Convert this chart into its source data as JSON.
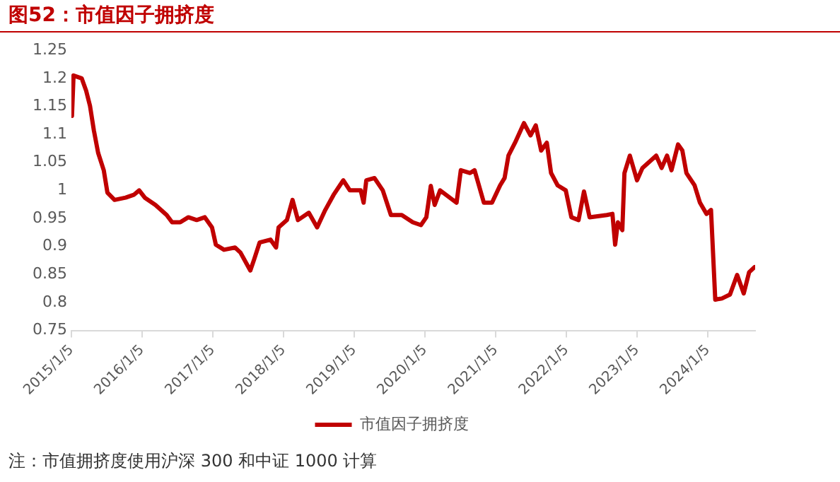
{
  "chart_data": {
    "type": "line",
    "title": "图52：市值因子拥挤度",
    "annotations": [
      "注：市值拥挤度使用沪深 300 和中证 1000 计算"
    ],
    "x": [
      "2015-01-08",
      "2015-01-16",
      "2015-02-27",
      "2015-03-22",
      "2015-04-11",
      "2015-05-01",
      "2015-05-23",
      "2015-06-21",
      "2015-07-10",
      "2015-08-16",
      "2015-10-12",
      "2015-11-23",
      "2015-12-21",
      "2016-01-19",
      "2016-03-14",
      "2016-05-11",
      "2016-06-08",
      "2016-07-20",
      "2016-08-31",
      "2016-10-13",
      "2016-11-24",
      "2016-12-31",
      "2017-01-20",
      "2017-03-03",
      "2017-04-29",
      "2017-05-27",
      "2017-07-17",
      "2017-08-05",
      "2017-09-03",
      "2017-10-29",
      "2017-11-27",
      "2017-12-10",
      "2018-01-22",
      "2018-02-20",
      "2018-03-20",
      "2018-05-15",
      "2018-06-27",
      "2018-08-08",
      "2018-09-20",
      "2018-11-09",
      "2018-12-13",
      "2019-02-07",
      "2019-02-22",
      "2019-03-08",
      "2019-04-19",
      "2019-06-01",
      "2019-07-13",
      "2019-09-07",
      "2019-11-03",
      "2019-12-15",
      "2020-01-12",
      "2020-02-04",
      "2020-02-24",
      "2020-03-23",
      "2020-06-16",
      "2020-07-08",
      "2020-08-25",
      "2020-09-17",
      "2020-11-04",
      "2020-12-16",
      "2021-01-27",
      "2021-02-19",
      "2021-03-11",
      "2021-04-14",
      "2021-05-30",
      "2021-07-03",
      "2021-07-30",
      "2021-08-27",
      "2021-09-25",
      "2021-10-17",
      "2021-11-20",
      "2022-01-01",
      "2022-01-30",
      "2022-03-08",
      "2022-04-05",
      "2022-05-04",
      "2022-08-01",
      "2022-08-30",
      "2022-09-13",
      "2022-09-27",
      "2022-10-20",
      "2022-10-31",
      "2022-11-28",
      "2023-01-04",
      "2023-02-01",
      "2023-04-13",
      "2023-05-11",
      "2023-06-08",
      "2023-07-01",
      "2023-08-04",
      "2023-08-26",
      "2023-09-16",
      "2023-10-28",
      "2023-11-25",
      "2023-12-29",
      "2024-01-21",
      "2024-02-12",
      "2024-03-17",
      "2024-04-28",
      "2024-06-04",
      "2024-07-08",
      "2024-08-05",
      "2024-09-02"
    ],
    "series": [
      {
        "name": "市值因子拥挤度",
        "color": "#c00000",
        "values": [
          1.133,
          1.205,
          1.2,
          1.178,
          1.151,
          1.107,
          1.067,
          1.036,
          0.996,
          0.983,
          0.987,
          0.992,
          1.0,
          0.987,
          0.974,
          0.956,
          0.943,
          0.943,
          0.952,
          0.947,
          0.952,
          0.934,
          0.903,
          0.894,
          0.898,
          0.889,
          0.857,
          0.876,
          0.907,
          0.912,
          0.898,
          0.934,
          0.947,
          0.983,
          0.947,
          0.96,
          0.934,
          0.965,
          0.992,
          1.018,
          1.0,
          1.0,
          0.978,
          1.018,
          1.022,
          1.0,
          0.956,
          0.956,
          0.943,
          0.938,
          0.952,
          1.008,
          0.974,
          1.0,
          0.978,
          1.036,
          1.031,
          1.036,
          0.978,
          0.978,
          1.009,
          1.022,
          1.062,
          1.085,
          1.12,
          1.098,
          1.116,
          1.071,
          1.085,
          1.031,
          1.009,
          1.0,
          0.952,
          0.947,
          0.998,
          0.952,
          0.956,
          0.958,
          0.903,
          0.943,
          0.929,
          1.031,
          1.062,
          1.018,
          1.04,
          1.062,
          1.04,
          1.062,
          1.036,
          1.082,
          1.071,
          1.031,
          1.009,
          0.978,
          0.958,
          0.965,
          0.805,
          0.807,
          0.814,
          0.849,
          0.816,
          0.854,
          0.863
        ]
      }
    ],
    "xlim": [
      "2015-01-05",
      "2024-09-05"
    ],
    "xticks": [
      {
        "value": "2015-01-05",
        "label": "2015/1/5"
      },
      {
        "value": "2016-01-05",
        "label": "2016/1/5"
      },
      {
        "value": "2017-01-05",
        "label": "2017/1/5"
      },
      {
        "value": "2018-01-05",
        "label": "2018/1/5"
      },
      {
        "value": "2019-01-05",
        "label": "2019/1/5"
      },
      {
        "value": "2020-01-05",
        "label": "2020/1/5"
      },
      {
        "value": "2021-01-05",
        "label": "2021/1/5"
      },
      {
        "value": "2022-01-05",
        "label": "2022/1/5"
      },
      {
        "value": "2023-01-05",
        "label": "2023/1/5"
      },
      {
        "value": "2024-01-05",
        "label": "2024/1/5"
      }
    ],
    "ylim": [
      0.75,
      1.25
    ],
    "yticks": [
      0.75,
      0.8,
      0.85,
      0.9,
      0.95,
      1,
      1.05,
      1.1,
      1.15,
      1.2,
      1.25
    ],
    "grid": false,
    "legend": "bottom",
    "marker": "none",
    "line_style": "solid"
  }
}
